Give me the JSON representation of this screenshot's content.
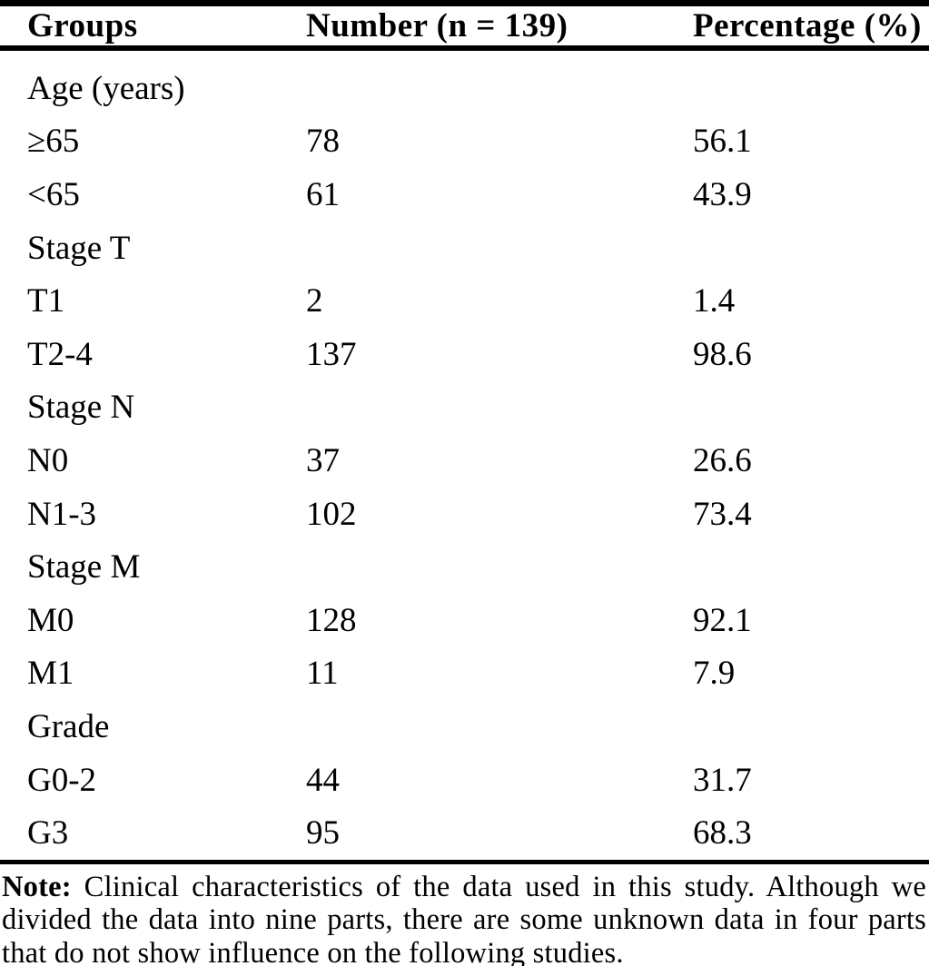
{
  "page": {
    "background_color": "#ffffff",
    "text_color": "#000000"
  },
  "table": {
    "columns": [
      {
        "label": "Groups"
      },
      {
        "label": "Number (n = 139)"
      },
      {
        "label": "Percentage (%)"
      }
    ],
    "rows": [
      {
        "group": "Age (years)",
        "number": "",
        "percentage": "",
        "is_category": true
      },
      {
        "group": "≥65",
        "number": "78",
        "percentage": "56.1",
        "is_category": false
      },
      {
        "group": "<65",
        "number": "61",
        "percentage": "43.9",
        "is_category": false
      },
      {
        "group": "Stage T",
        "number": "",
        "percentage": "",
        "is_category": true
      },
      {
        "group": "T1",
        "number": "2",
        "percentage": "1.4",
        "is_category": false
      },
      {
        "group": "T2-4",
        "number": "137",
        "percentage": "98.6",
        "is_category": false
      },
      {
        "group": "Stage N",
        "number": "",
        "percentage": "",
        "is_category": true
      },
      {
        "group": "N0",
        "number": "37",
        "percentage": "26.6",
        "is_category": false
      },
      {
        "group": "N1-3",
        "number": "102",
        "percentage": "73.4",
        "is_category": false
      },
      {
        "group": "Stage M",
        "number": "",
        "percentage": "",
        "is_category": true
      },
      {
        "group": "M0",
        "number": "128",
        "percentage": "92.1",
        "is_category": false
      },
      {
        "group": "M1",
        "number": "11",
        "percentage": "7.9",
        "is_category": false
      },
      {
        "group": "Grade",
        "number": "",
        "percentage": "",
        "is_category": true
      },
      {
        "group": "G0-2",
        "number": "44",
        "percentage": "31.7",
        "is_category": false
      },
      {
        "group": "G3",
        "number": "95",
        "percentage": "68.3",
        "is_category": false
      }
    ],
    "note": {
      "label": "Note:",
      "text": " Clinical characteristics of the data used in this study. Although we divided the data into nine parts, there are some unknown data in four parts that do not show influence on the following studies."
    }
  }
}
